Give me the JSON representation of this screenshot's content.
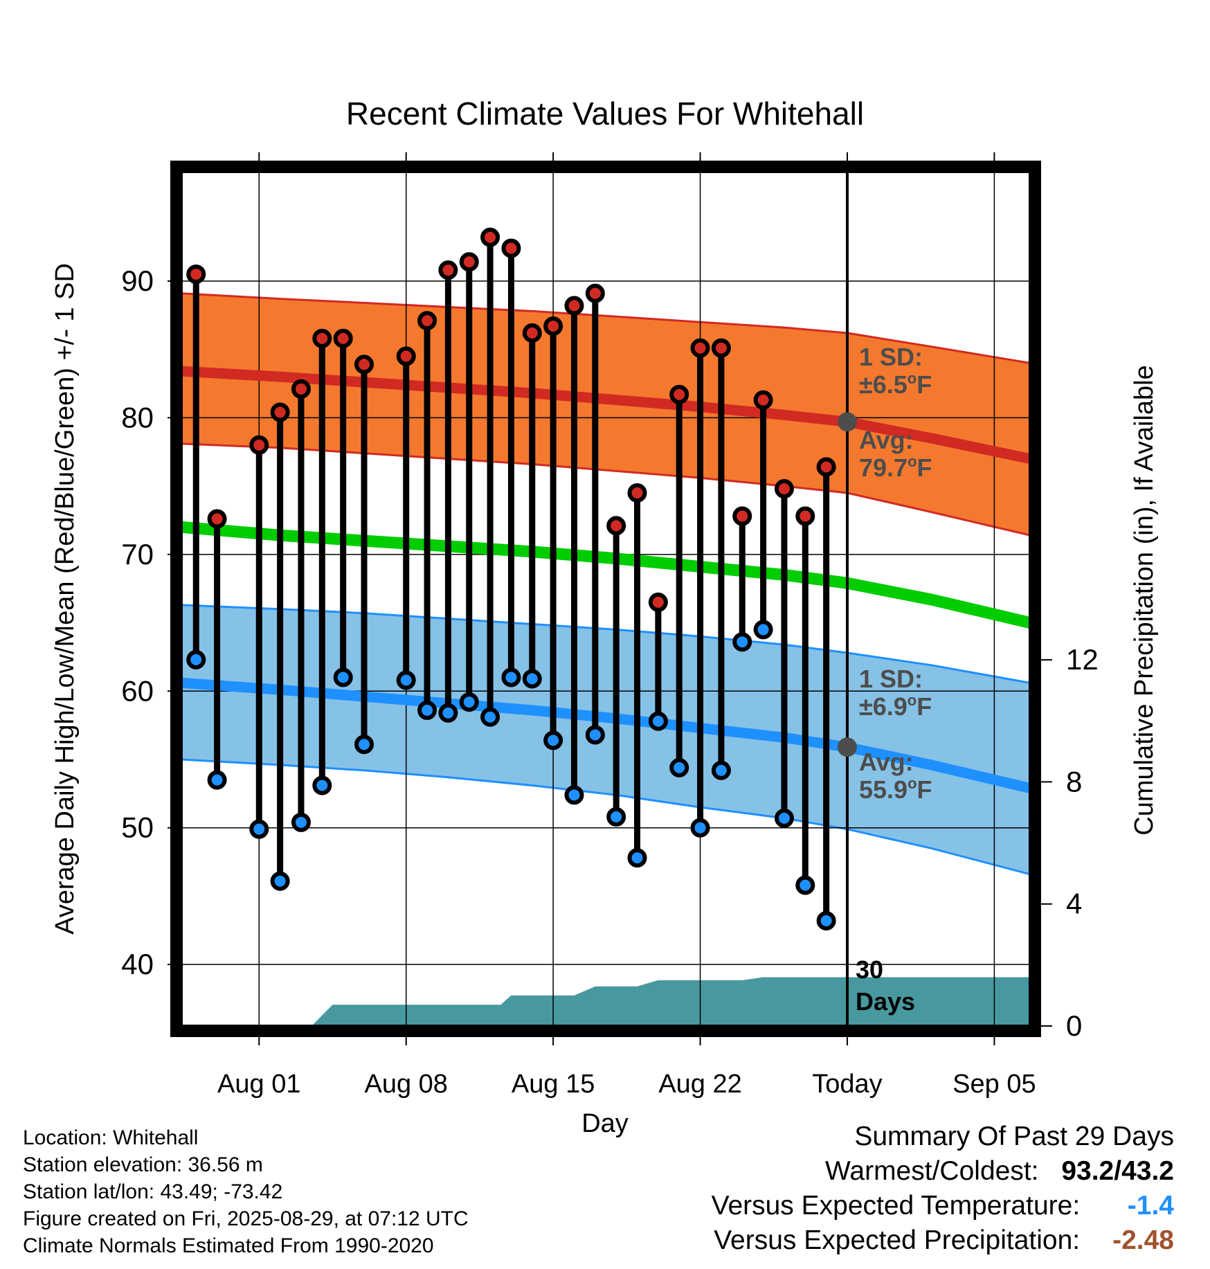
{
  "chart_data": {
    "type": "line",
    "title": "Recent Climate Values For Whitehall",
    "xlabel": "Day",
    "ylabel": "Average Daily High/Low/Mean (Red/Blue/Green) +/- 1 SD",
    "y2label": "Cumulative Precipitation (in), If Available",
    "x_tick_labels": [
      "Aug 01",
      "Aug 08",
      "Aug 15",
      "Aug 22",
      "Today",
      "Sep 05"
    ],
    "x_tick_days": [
      1,
      8,
      15,
      22,
      29,
      36
    ],
    "y_ticks": [
      40,
      50,
      60,
      70,
      80,
      90
    ],
    "y2_ticks": [
      0,
      4,
      8,
      12
    ],
    "ylim": [
      35.5,
      98
    ],
    "y2lim": [
      0,
      28
    ],
    "xlim": [
      -2.7,
      37.7
    ],
    "grid": true,
    "today_day": 29,
    "normal_days": [
      -2.7,
      2,
      6,
      10,
      14,
      18,
      22,
      26,
      29,
      33,
      37.7
    ],
    "normal_high_avg": [
      83.4,
      83.0,
      82.6,
      82.2,
      81.8,
      81.3,
      80.8,
      80.2,
      79.7,
      78.5,
      77.0
    ],
    "normal_high_sd_upper": [
      89.1,
      88.7,
      88.4,
      88.1,
      87.8,
      87.4,
      87.0,
      86.6,
      86.2,
      85.2,
      84.0
    ],
    "normal_high_sd_lower": [
      78.1,
      77.8,
      77.4,
      77.0,
      76.6,
      76.1,
      75.6,
      75.0,
      74.5,
      73.1,
      71.4
    ],
    "normal_mean": [
      72.0,
      71.4,
      71.0,
      70.6,
      70.2,
      69.7,
      69.1,
      68.5,
      67.9,
      66.7,
      65.0
    ],
    "normal_low_avg": [
      60.6,
      60.1,
      59.6,
      59.1,
      58.6,
      58.0,
      57.3,
      56.6,
      55.9,
      54.6,
      52.9
    ],
    "normal_low_sd_upper": [
      66.3,
      66.0,
      65.7,
      65.3,
      64.9,
      64.5,
      64.0,
      63.4,
      62.8,
      61.9,
      60.6
    ],
    "normal_low_sd_lower": [
      55.0,
      54.6,
      54.2,
      53.7,
      53.1,
      52.4,
      51.5,
      50.7,
      49.9,
      48.5,
      46.6
    ],
    "observed_days": [
      -2,
      -1,
      1,
      2,
      3,
      4,
      5,
      6,
      8,
      9,
      10,
      11,
      12,
      13,
      14,
      15,
      16,
      17,
      18,
      19,
      20,
      21,
      22,
      23,
      24,
      25,
      26,
      27,
      28
    ],
    "observed_high": [
      90.5,
      72.6,
      78.0,
      80.4,
      82.1,
      85.8,
      85.8,
      83.9,
      84.5,
      87.1,
      90.8,
      91.4,
      93.2,
      92.4,
      86.2,
      86.7,
      88.2,
      89.1,
      72.1,
      74.5,
      66.5,
      81.7,
      85.1,
      85.1,
      72.8,
      81.3,
      74.8,
      72.8,
      76.4
    ],
    "observed_low": [
      62.3,
      53.5,
      49.9,
      46.1,
      50.4,
      53.1,
      61.0,
      56.1,
      60.8,
      58.6,
      58.4,
      59.2,
      58.1,
      61.0,
      60.9,
      56.4,
      52.4,
      56.8,
      50.8,
      47.8,
      57.8,
      54.4,
      50.0,
      54.2,
      63.6,
      64.5,
      50.7,
      45.8,
      43.2
    ],
    "precip_days": [
      -2.7,
      3.5,
      4.5,
      8,
      11,
      12.5,
      13,
      16,
      17,
      18,
      19,
      20,
      21,
      24,
      25,
      29,
      37.7
    ],
    "precip_cum": [
      0,
      0,
      0.7,
      0.7,
      0.7,
      0.7,
      1.0,
      1.0,
      1.3,
      1.3,
      1.3,
      1.5,
      1.5,
      1.5,
      1.6,
      1.6,
      1.6
    ],
    "colors": {
      "high_band": "#f4792e",
      "high_line": "#d12a22",
      "mean_line": "#00cc00",
      "low_band": "#86c1e6",
      "low_line": "#1e90ff",
      "precip": "#48999f",
      "obs_high_dot": "#d12a22",
      "obs_low_dot": "#1e90ff",
      "annot": "#4d4d4d",
      "today_dot": "#4d4d4d"
    },
    "annotations": {
      "high_sd_label": "1 SD:",
      "high_sd_value": "±6.5",
      "high_avg_label": "Avg:",
      "high_avg_value": "79.7",
      "low_sd_label": "1 SD:",
      "low_sd_value": "±6.9",
      "low_avg_label": "Avg:",
      "low_avg_value": "55.9",
      "unit_o": "o",
      "unit_f": "F",
      "days_line1": "30",
      "days_line2": "Days"
    }
  },
  "info": {
    "location": "Location: Whitehall",
    "elevation": "Station elevation: 36.56 m",
    "latlon": "Station lat/lon: 43.49; -73.42",
    "created": "Figure created on Fri, 2025-08-29, at 07:12 UTC",
    "normals": "Climate Normals Estimated From 1990-2020"
  },
  "summary": {
    "title": "Summary Of Past 29 Days",
    "warm_cold_label": "Warmest/Coldest:",
    "warm_cold_value": "93.2/43.2",
    "temp_label": "Versus Expected Temperature:",
    "temp_value": "-1.4",
    "temp_color": "#1e90ff",
    "precip_label": "Versus Expected Precipitation:",
    "precip_value": "-2.48",
    "precip_color": "#a0522d"
  }
}
